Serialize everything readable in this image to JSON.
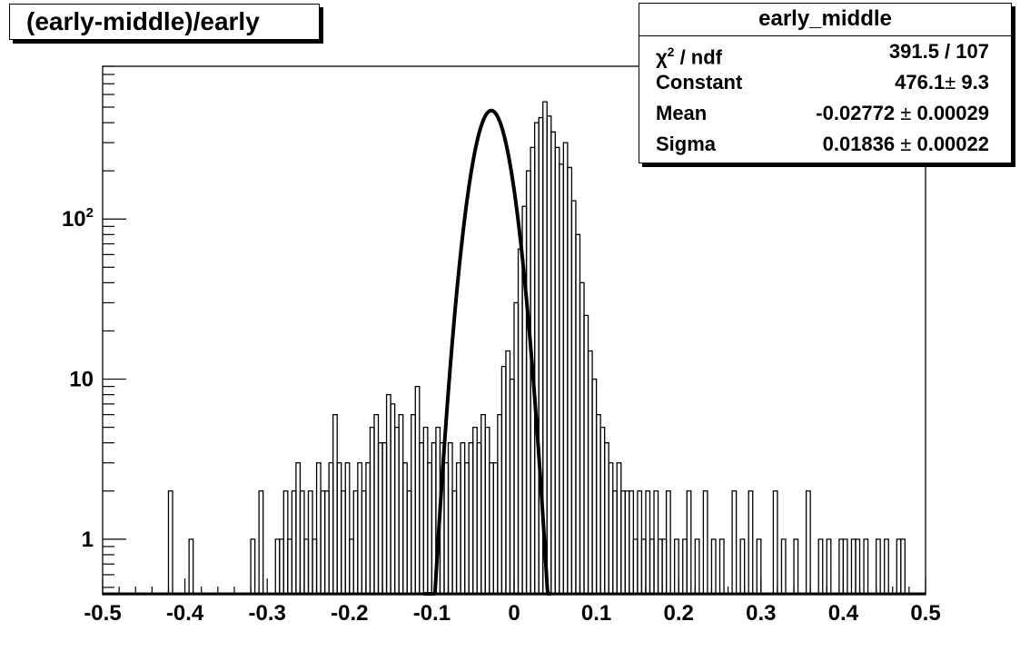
{
  "title": "(early-middle)/early",
  "stats": {
    "name": "early_middle",
    "rows": [
      {
        "label_sym": "χ",
        "label_sup": "2",
        "label_rest": " / ndf",
        "value": "391.5 / 107",
        "error": ""
      },
      {
        "label": "Constant",
        "value": "476.1",
        "error": "9.3"
      },
      {
        "label": "Mean",
        "value": "-0.02772",
        "error": "0.00029"
      },
      {
        "label": "Sigma",
        "value": "0.01836",
        "error": "0.00022"
      }
    ],
    "pm": "±"
  },
  "chart_data": {
    "type": "histogram",
    "title": "(early-middle)/early",
    "xlabel": "",
    "ylabel": "",
    "xlim": [
      -0.5,
      0.5
    ],
    "ylim": [
      0.45,
      900
    ],
    "yscale": "log",
    "grid": false,
    "x_ticks": [
      {
        "value": -0.5,
        "label": "-0.5"
      },
      {
        "value": -0.4,
        "label": "-0.4"
      },
      {
        "value": -0.3,
        "label": "-0.3"
      },
      {
        "value": -0.2,
        "label": "-0.2"
      },
      {
        "value": -0.1,
        "label": "-0.1"
      },
      {
        "value": 0,
        "label": "0"
      },
      {
        "value": 0.1,
        "label": "0.1"
      },
      {
        "value": 0.2,
        "label": "0.2"
      },
      {
        "value": 0.3,
        "label": "0.3"
      },
      {
        "value": 0.4,
        "label": "0.4"
      },
      {
        "value": 0.5,
        "label": "0.5"
      }
    ],
    "y_ticks": [
      {
        "value": 1,
        "label": "1"
      },
      {
        "value": 10,
        "label": "10"
      },
      {
        "value": 100,
        "label": "10",
        "sup": "2"
      }
    ],
    "bin_width": 0.005,
    "bins": [
      [
        -0.42,
        2
      ],
      [
        -0.395,
        1
      ],
      [
        -0.32,
        1
      ],
      [
        -0.31,
        2
      ],
      [
        -0.29,
        1
      ],
      [
        -0.285,
        1
      ],
      [
        -0.28,
        2
      ],
      [
        -0.275,
        1
      ],
      [
        -0.27,
        2
      ],
      [
        -0.265,
        3
      ],
      [
        -0.26,
        2
      ],
      [
        -0.255,
        1
      ],
      [
        -0.25,
        2
      ],
      [
        -0.245,
        1
      ],
      [
        -0.24,
        3
      ],
      [
        -0.235,
        2
      ],
      [
        -0.23,
        2
      ],
      [
        -0.225,
        3
      ],
      [
        -0.22,
        6
      ],
      [
        -0.215,
        3
      ],
      [
        -0.21,
        2
      ],
      [
        -0.205,
        3
      ],
      [
        -0.2,
        1
      ],
      [
        -0.195,
        2
      ],
      [
        -0.19,
        3
      ],
      [
        -0.185,
        2
      ],
      [
        -0.18,
        3
      ],
      [
        -0.175,
        5
      ],
      [
        -0.17,
        6
      ],
      [
        -0.165,
        4
      ],
      [
        -0.16,
        4
      ],
      [
        -0.155,
        8
      ],
      [
        -0.15,
        7
      ],
      [
        -0.145,
        5
      ],
      [
        -0.14,
        6
      ],
      [
        -0.135,
        3
      ],
      [
        -0.13,
        2
      ],
      [
        -0.125,
        6
      ],
      [
        -0.12,
        9
      ],
      [
        -0.115,
        4
      ],
      [
        -0.11,
        5
      ],
      [
        -0.105,
        3
      ],
      [
        -0.1,
        4
      ],
      [
        -0.095,
        5
      ],
      [
        -0.09,
        4
      ],
      [
        -0.085,
        3
      ],
      [
        -0.08,
        4
      ],
      [
        -0.075,
        2
      ],
      [
        -0.07,
        3
      ],
      [
        -0.065,
        4
      ],
      [
        -0.06,
        3
      ],
      [
        -0.055,
        4
      ],
      [
        -0.05,
        5
      ],
      [
        -0.045,
        4
      ],
      [
        -0.04,
        6
      ],
      [
        -0.035,
        5
      ],
      [
        -0.03,
        3
      ],
      [
        -0.025,
        3
      ],
      [
        -0.02,
        6
      ],
      [
        -0.015,
        12
      ],
      [
        -0.01,
        15
      ],
      [
        -0.005,
        10
      ],
      [
        0.0,
        30
      ],
      [
        0.005,
        65
      ],
      [
        0.01,
        120
      ],
      [
        0.015,
        200
      ],
      [
        0.02,
        280
      ],
      [
        0.025,
        400
      ],
      [
        0.03,
        430
      ],
      [
        0.035,
        540
      ],
      [
        0.04,
        440
      ],
      [
        0.045,
        350
      ],
      [
        0.05,
        280
      ],
      [
        0.055,
        220
      ],
      [
        0.06,
        300
      ],
      [
        0.065,
        210
      ],
      [
        0.07,
        130
      ],
      [
        0.075,
        80
      ],
      [
        0.08,
        40
      ],
      [
        0.085,
        25
      ],
      [
        0.09,
        15
      ],
      [
        0.095,
        10
      ],
      [
        0.1,
        6
      ],
      [
        0.105,
        5
      ],
      [
        0.11,
        4
      ],
      [
        0.115,
        3
      ],
      [
        0.12,
        2
      ],
      [
        0.125,
        3
      ],
      [
        0.13,
        2
      ],
      [
        0.135,
        2
      ],
      [
        0.14,
        2
      ],
      [
        0.145,
        1
      ],
      [
        0.15,
        2
      ],
      [
        0.155,
        1
      ],
      [
        0.16,
        2
      ],
      [
        0.165,
        1
      ],
      [
        0.17,
        2
      ],
      [
        0.175,
        1
      ],
      [
        0.18,
        1
      ],
      [
        0.185,
        2
      ],
      [
        0.195,
        1
      ],
      [
        0.205,
        1
      ],
      [
        0.21,
        2
      ],
      [
        0.22,
        1
      ],
      [
        0.23,
        2
      ],
      [
        0.24,
        1
      ],
      [
        0.25,
        1
      ],
      [
        0.265,
        2
      ],
      [
        0.275,
        1
      ],
      [
        0.285,
        2
      ],
      [
        0.295,
        1
      ],
      [
        0.315,
        2
      ],
      [
        0.325,
        1
      ],
      [
        0.34,
        1
      ],
      [
        0.355,
        2
      ],
      [
        0.37,
        1
      ],
      [
        0.38,
        1
      ],
      [
        0.395,
        1
      ],
      [
        0.4,
        1
      ],
      [
        0.41,
        1
      ],
      [
        0.415,
        1
      ],
      [
        0.425,
        1
      ],
      [
        0.44,
        1
      ],
      [
        0.45,
        1
      ],
      [
        0.465,
        1
      ],
      [
        0.47,
        1
      ]
    ],
    "fit": {
      "function": "gaus",
      "constant": 476.1,
      "mean": -0.02772,
      "sigma": 0.01836,
      "x_range": [
        -0.11,
        0.045
      ]
    }
  }
}
